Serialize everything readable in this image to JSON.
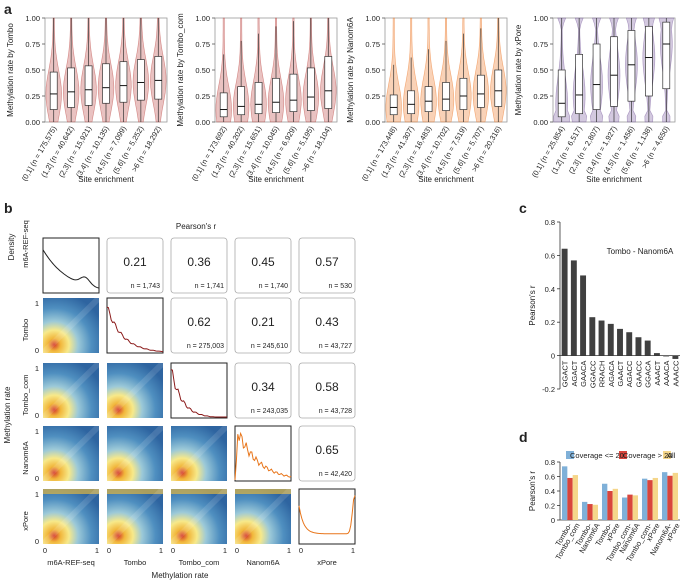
{
  "panel_labels": [
    "a",
    "b",
    "c",
    "d"
  ],
  "chart_data": [
    {
      "panel": "a",
      "type": "violin-box",
      "categories": [
        "(0,1] (n = 175,575)",
        "(1,2] (n = 40,642)",
        "(2,3] (n = 15,921)",
        "(3,4] (n = 10,135)",
        "(4,5] (n = 7,099)",
        "(5,6] (n = 5,252)",
        ">6 (n = 18,292)"
      ],
      "ylabel": "Methylation rate by Tombo",
      "xlabel": "Site enrichment",
      "ylim": [
        0,
        1.0
      ],
      "yticks": [
        "0.00",
        "0.25",
        "0.50",
        "0.75",
        "1.00"
      ],
      "color": "#c0504d",
      "median": [
        0.27,
        0.29,
        0.31,
        0.33,
        0.35,
        0.38,
        0.4
      ],
      "q1": [
        0.12,
        0.14,
        0.16,
        0.18,
        0.19,
        0.21,
        0.22
      ],
      "q3": [
        0.48,
        0.52,
        0.54,
        0.56,
        0.58,
        0.6,
        0.63
      ],
      "lower_whisker": [
        0.0,
        0.0,
        0.0,
        0.0,
        0.0,
        0.0,
        0.0
      ],
      "upper_whisker": [
        1.0,
        1.0,
        1.0,
        1.0,
        1.0,
        1.0,
        1.0
      ]
    },
    {
      "panel": "a",
      "type": "violin-box",
      "categories": [
        "(0,1] (n = 173,692)",
        "(1,2] (n = 40,202)",
        "(2,3] (n = 15,651)",
        "(3,4] (n = 10,045)",
        "(4,5] (n = 6,929)",
        "(5,6] (n = 5,195)",
        ">6 (n = 18,104)"
      ],
      "ylabel": "Methylation rate by Tombo_com",
      "xlabel": "Site enrichment",
      "ylim": [
        0,
        1.0
      ],
      "yticks": [
        "0.00",
        "0.25",
        "0.50",
        "0.75",
        "1.00"
      ],
      "color": "#c0504d",
      "median": [
        0.12,
        0.15,
        0.17,
        0.19,
        0.21,
        0.24,
        0.3
      ],
      "q1": [
        0.05,
        0.07,
        0.08,
        0.09,
        0.1,
        0.11,
        0.13
      ],
      "q3": [
        0.28,
        0.34,
        0.38,
        0.42,
        0.46,
        0.52,
        0.63
      ],
      "lower_whisker": [
        0.0,
        0.0,
        0.0,
        0.0,
        0.0,
        0.0,
        0.0
      ],
      "upper_whisker": [
        0.65,
        0.78,
        0.85,
        0.92,
        0.97,
        1.0,
        1.0
      ]
    },
    {
      "panel": "a",
      "type": "violin-box",
      "categories": [
        "(0,1] (n = 173,448)",
        "(1,2] (n = 41,307)",
        "(2,3] (n = 16,483)",
        "(3,4] (n = 10,702)",
        "(4,5] (n = 7,519)",
        "(5,6] (n = 5,707)",
        ">6 (n = 20,316)"
      ],
      "ylabel": "Methylation rate by Nanom6A",
      "xlabel": "Site enrichment",
      "ylim": [
        0,
        1.0
      ],
      "yticks": [
        "0.00",
        "0.25",
        "0.50",
        "0.75",
        "1.00"
      ],
      "color": "#ed7d31",
      "median": [
        0.14,
        0.17,
        0.2,
        0.22,
        0.25,
        0.27,
        0.3
      ],
      "q1": [
        0.07,
        0.08,
        0.1,
        0.11,
        0.12,
        0.14,
        0.15
      ],
      "q3": [
        0.26,
        0.3,
        0.34,
        0.38,
        0.42,
        0.45,
        0.5
      ],
      "lower_whisker": [
        0.0,
        0.0,
        0.0,
        0.0,
        0.0,
        0.0,
        0.0
      ],
      "upper_whisker": [
        0.55,
        0.62,
        0.7,
        0.78,
        0.85,
        0.9,
        1.0
      ]
    },
    {
      "panel": "a",
      "type": "violin-box",
      "categories": [
        "(0,1] (n = 25,854)",
        "(1,2] (n = 6,517)",
        "(2,3] (n = 2,807)",
        "(3,4] (n = 1,927)",
        "(4,5] (n = 1,456)",
        "(5,6] (n = 1,138)",
        ">6 (n = 4,650)"
      ],
      "ylabel": "Methylation rate by xPore",
      "xlabel": "Site enrichment",
      "ylim": [
        0,
        1.0
      ],
      "yticks": [
        "0.00",
        "0.25",
        "0.50",
        "0.75",
        "1.00"
      ],
      "color": "#8064a2",
      "median": [
        0.18,
        0.26,
        0.36,
        0.45,
        0.55,
        0.62,
        0.75
      ],
      "q1": [
        0.05,
        0.08,
        0.12,
        0.15,
        0.2,
        0.25,
        0.32
      ],
      "q3": [
        0.5,
        0.65,
        0.75,
        0.82,
        0.88,
        0.92,
        0.96
      ],
      "lower_whisker": [
        0.0,
        0.0,
        0.0,
        0.0,
        0.0,
        0.0,
        0.0
      ],
      "upper_whisker": [
        1.0,
        1.0,
        1.0,
        1.0,
        1.0,
        1.0,
        1.0
      ]
    },
    {
      "panel": "b",
      "type": "heatmap",
      "title": "Pearson's r",
      "ylabel_density": "Density",
      "ylabel": "Methylation rate",
      "xlabel": "Methylation rate",
      "variables": [
        "m6A-REF-seq",
        "Tombo",
        "Tombo_com",
        "Nanom6A",
        "xPore"
      ],
      "axis_ticks": [
        "0",
        "1"
      ],
      "correlations": [
        {
          "row": 0,
          "col": 1,
          "r": "0.21",
          "n": "n = 1,743"
        },
        {
          "row": 0,
          "col": 2,
          "r": "0.36",
          "n": "n = 1,741"
        },
        {
          "row": 0,
          "col": 3,
          "r": "0.45",
          "n": "n = 1,740"
        },
        {
          "row": 0,
          "col": 4,
          "r": "0.57",
          "n": "n = 530"
        },
        {
          "row": 1,
          "col": 2,
          "r": "0.62",
          "n": "n = 275,003"
        },
        {
          "row": 1,
          "col": 3,
          "r": "0.21",
          "n": "n = 245,610"
        },
        {
          "row": 1,
          "col": 4,
          "r": "0.43",
          "n": "n = 43,727"
        },
        {
          "row": 2,
          "col": 3,
          "r": "0.34",
          "n": "n = 243,035"
        },
        {
          "row": 2,
          "col": 4,
          "r": "0.58",
          "n": "n = 43,728"
        },
        {
          "row": 3,
          "col": 4,
          "r": "0.65",
          "n": "n = 42,420"
        }
      ],
      "density_colors": [
        "#222222",
        "#8b1a1a",
        "#8b1a1a",
        "#e8751a",
        "#e8751a"
      ]
    },
    {
      "panel": "c",
      "type": "bar",
      "title": "Tombo - Nanom6A",
      "categories": [
        "GGACT",
        "AGACT",
        "GAACA",
        "GGACC",
        "RRACH",
        "AGACA",
        "GAACT",
        "AGACC",
        "GAACC",
        "GGACA",
        "AAACT",
        "AAACA",
        "AAACC"
      ],
      "values": [
        0.64,
        0.57,
        0.48,
        0.23,
        0.21,
        0.19,
        0.16,
        0.14,
        0.11,
        0.09,
        0.015,
        -0.005,
        -0.02
      ],
      "ylabel": "Pearson's r",
      "xlabel": "",
      "ylim": [
        -0.2,
        0.8
      ],
      "yticks": [
        "-0.2",
        "0",
        "0.2",
        "0.4",
        "0.6",
        "0.8"
      ],
      "color": "#404040"
    },
    {
      "panel": "d",
      "type": "bar",
      "categories": [
        "Tombo-\nTombo_com",
        "Tombo-\nNanom6A",
        "Tombo-\nxPore",
        "Tombo_com-\nNanom6A",
        "Tombo_com-\nxPore",
        "Nanom6A-\nxPore"
      ],
      "series": [
        {
          "name": "Coverage <= 20",
          "color": "#7fb0d8",
          "values": [
            0.74,
            0.25,
            0.5,
            0.31,
            0.57,
            0.66
          ]
        },
        {
          "name": "Coverage > 20",
          "color": "#d9453c",
          "values": [
            0.58,
            0.22,
            0.4,
            0.35,
            0.55,
            0.61
          ]
        },
        {
          "name": "All",
          "color": "#f5d68a",
          "values": [
            0.62,
            0.21,
            0.43,
            0.34,
            0.58,
            0.65
          ]
        }
      ],
      "ylabel": "Pearson's r",
      "xlabel": "",
      "ylim": [
        0,
        0.8
      ],
      "yticks": [
        "0",
        "0.2",
        "0.4",
        "0.6",
        "0.8"
      ],
      "legend": "top"
    }
  ]
}
